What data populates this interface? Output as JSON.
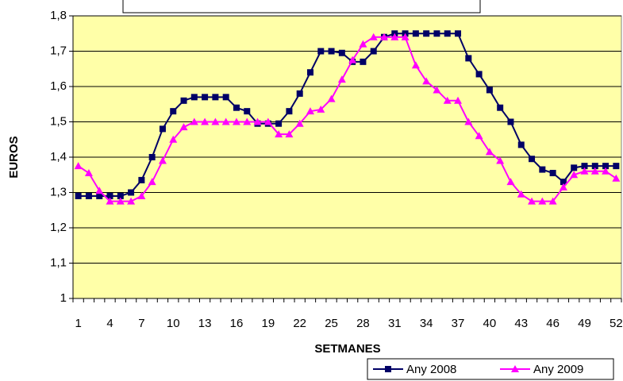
{
  "chart_data": {
    "type": "line",
    "xlabel": "SETMANES",
    "ylabel": "EUROS",
    "categories": [
      1,
      null,
      null,
      4,
      null,
      null,
      7,
      null,
      null,
      10,
      null,
      null,
      13,
      null,
      null,
      16,
      null,
      null,
      19,
      null,
      null,
      22,
      null,
      null,
      25,
      null,
      null,
      28,
      null,
      null,
      31,
      null,
      null,
      34,
      null,
      null,
      37,
      null,
      null,
      40,
      null,
      null,
      43,
      null,
      null,
      46,
      null,
      null,
      49,
      null,
      null,
      52
    ],
    "series": [
      {
        "name": "Any 2008",
        "color": "#000066",
        "marker": "square",
        "values": [
          1.29,
          1.29,
          1.29,
          1.29,
          1.29,
          1.3,
          1.335,
          1.4,
          1.48,
          1.53,
          1.56,
          1.57,
          1.57,
          1.57,
          1.57,
          1.54,
          1.53,
          1.495,
          1.495,
          1.495,
          1.53,
          1.58,
          1.64,
          1.7,
          1.7,
          1.695,
          1.67,
          1.67,
          1.7,
          1.74,
          1.75,
          1.75,
          1.75,
          1.75,
          1.75,
          1.75,
          1.75,
          1.68,
          1.635,
          1.59,
          1.54,
          1.5,
          1.435,
          1.395,
          1.365,
          1.355,
          1.33,
          1.37,
          1.375,
          1.375,
          1.375,
          1.375
        ]
      },
      {
        "name": "Any 2009",
        "color": "#ff00ff",
        "marker": "triangle",
        "values": [
          1.375,
          1.355,
          1.305,
          1.275,
          1.275,
          1.275,
          1.29,
          1.33,
          1.39,
          1.45,
          1.485,
          1.5,
          1.5,
          1.5,
          1.5,
          1.5,
          1.5,
          1.5,
          1.5,
          1.465,
          1.465,
          1.495,
          1.53,
          1.535,
          1.565,
          1.62,
          1.675,
          1.72,
          1.74,
          1.74,
          1.74,
          1.74,
          1.66,
          1.615,
          1.59,
          1.56,
          1.56,
          1.5,
          1.46,
          1.415,
          1.39,
          1.33,
          1.295,
          1.275,
          1.275,
          1.275,
          1.315,
          1.35,
          1.36,
          1.36,
          1.36,
          1.34
        ]
      }
    ],
    "ylim": [
      1,
      1.8
    ],
    "yticks": [
      1,
      {
        "value": 1.1,
        "label": "1,1"
      },
      {
        "value": 1.2,
        "label": "1,2"
      },
      {
        "value": 1.3,
        "label": "1,3"
      },
      {
        "value": 1.4,
        "label": "1,4"
      },
      {
        "value": 1.5,
        "label": "1,5"
      },
      {
        "value": 1.6,
        "label": "1,6"
      },
      {
        "value": 1.7,
        "label": "1,7"
      },
      {
        "value": 1.8,
        "label": "1,8"
      }
    ],
    "grid": true,
    "background": "#ffffa8",
    "legend": "bottom-right"
  }
}
